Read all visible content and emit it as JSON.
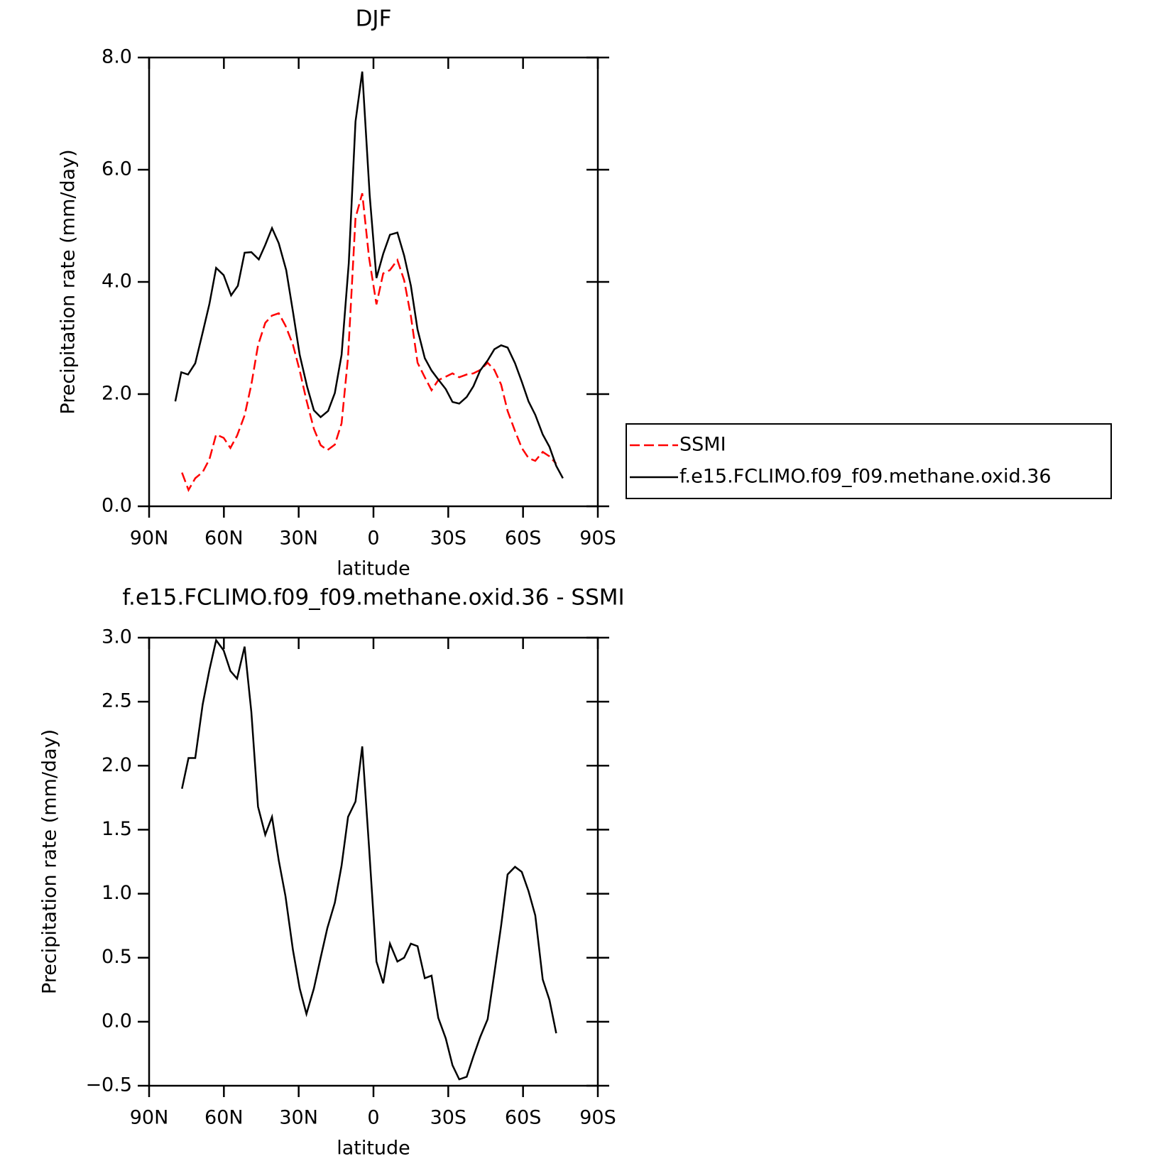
{
  "chart_data": [
    {
      "type": "line",
      "title": "DJF",
      "ylabel": "Precipitation rate (mm/day)",
      "xlabel": "latitude",
      "xlim": [
        90,
        -90
      ],
      "xticks": [
        {
          "value": 90,
          "label": "90N"
        },
        {
          "value": 60,
          "label": "60N"
        },
        {
          "value": 30,
          "label": "30N"
        },
        0,
        {
          "value": -30,
          "label": "30S"
        },
        {
          "value": -60,
          "label": "60S"
        },
        {
          "value": -90,
          "label": "90S"
        }
      ],
      "ylim": [
        0,
        8
      ],
      "yticks": [
        {
          "value": 0,
          "label": "0.0"
        },
        {
          "value": 2,
          "label": "2.0"
        },
        {
          "value": 4,
          "label": "4.0"
        },
        {
          "value": 6,
          "label": "6.0"
        },
        {
          "value": 8,
          "label": "8.0"
        }
      ],
      "legend": "outside-right",
      "series": [
        {
          "name": "SSMI",
          "color": "#ff0000",
          "dashed": true,
          "x": [
            76.8,
            74.2,
            71.5,
            68.5,
            65.8,
            63.1,
            60.1,
            57.4,
            54.7,
            51.7,
            49.0,
            46.3,
            43.4,
            40.7,
            38.0,
            35.3,
            32.3,
            29.6,
            26.9,
            23.9,
            21.2,
            18.5,
            15.5,
            12.8,
            10.2,
            7.2,
            4.5,
            1.8,
            -1.2,
            -3.9,
            -6.6,
            -9.6,
            -12.3,
            -15.0,
            -17.7,
            -20.6,
            -23.3,
            -26.0,
            -29.0,
            -31.7,
            -34.4,
            -37.4,
            -40.1,
            -42.8,
            -45.8,
            -48.5,
            -51.2,
            -53.8,
            -56.8,
            -59.5,
            -62.2,
            -64.9,
            -67.9,
            -70.6,
            -73.3
          ],
          "values": [
            0.6,
            0.29,
            0.5,
            0.61,
            0.84,
            1.28,
            1.22,
            1.04,
            1.26,
            1.62,
            2.17,
            2.87,
            3.27,
            3.4,
            3.44,
            3.22,
            2.88,
            2.42,
            1.89,
            1.38,
            1.09,
            1.0,
            1.1,
            1.48,
            2.66,
            5.14,
            5.58,
            4.44,
            3.6,
            4.15,
            4.21,
            4.39,
            4.03,
            3.39,
            2.56,
            2.3,
            2.07,
            2.25,
            2.31,
            2.37,
            2.3,
            2.35,
            2.37,
            2.43,
            2.56,
            2.43,
            2.17,
            1.7,
            1.34,
            1.04,
            0.86,
            0.81,
            0.97,
            0.89,
            0.76
          ]
        },
        {
          "name": "f.e15.FCLIMO.f09_f09.methane.oxid.36",
          "color": "#000000",
          "dashed": false,
          "x": [
            79.5,
            77.1,
            74.4,
            71.5,
            68.5,
            65.8,
            63.1,
            60.1,
            57.1,
            54.4,
            51.7,
            49.0,
            46.0,
            43.4,
            40.7,
            38.0,
            35.0,
            32.3,
            29.6,
            26.6,
            23.9,
            21.2,
            18.2,
            15.5,
            12.8,
            9.9,
            7.2,
            4.5,
            1.5,
            -1.2,
            -3.9,
            -6.6,
            -9.6,
            -12.3,
            -15.0,
            -17.7,
            -20.6,
            -23.3,
            -26.0,
            -29.0,
            -31.7,
            -34.4,
            -37.4,
            -40.1,
            -42.8,
            -45.8,
            -48.5,
            -51.2,
            -53.8,
            -56.8,
            -59.5,
            -62.2,
            -64.9,
            -67.9,
            -70.6,
            -73.3,
            -76.0
          ],
          "values": [
            1.87,
            2.39,
            2.35,
            2.55,
            3.1,
            3.61,
            4.25,
            4.12,
            3.76,
            3.93,
            4.52,
            4.53,
            4.4,
            4.66,
            4.96,
            4.69,
            4.21,
            3.47,
            2.7,
            2.13,
            1.71,
            1.59,
            1.7,
            2.02,
            2.7,
            4.33,
            6.86,
            7.75,
            5.54,
            4.07,
            4.5,
            4.84,
            4.88,
            4.47,
            3.93,
            3.15,
            2.64,
            2.42,
            2.26,
            2.09,
            1.86,
            1.83,
            1.95,
            2.14,
            2.42,
            2.6,
            2.8,
            2.87,
            2.83,
            2.55,
            2.22,
            1.87,
            1.63,
            1.28,
            1.06,
            0.72,
            0.5
          ]
        }
      ]
    },
    {
      "type": "line",
      "title": "f.e15.FCLIMO.f09_f09.methane.oxid.36 - SSMI",
      "ylabel": "Precipitation rate (mm/day)",
      "xlabel": "latitude",
      "xlim": [
        90,
        -90
      ],
      "xticks": [
        {
          "value": 90,
          "label": "90N"
        },
        {
          "value": 60,
          "label": "60N"
        },
        {
          "value": 30,
          "label": "30N"
        },
        0,
        {
          "value": -30,
          "label": "30S"
        },
        {
          "value": -60,
          "label": "60S"
        },
        {
          "value": -90,
          "label": "90S"
        }
      ],
      "ylim": [
        -0.5,
        3
      ],
      "yticks": [
        {
          "value": -0.5,
          "label": "−0.5"
        },
        {
          "value": 0,
          "label": "0.0"
        },
        0.5,
        {
          "value": 1,
          "label": "1.0"
        },
        1.5,
        {
          "value": 2,
          "label": "2.0"
        },
        2.5,
        {
          "value": 3,
          "label": "3.0"
        }
      ],
      "color": "#000000",
      "x": [
        76.8,
        74.2,
        71.5,
        68.5,
        65.8,
        63.1,
        60.1,
        57.4,
        54.7,
        51.7,
        49.0,
        46.3,
        43.4,
        40.7,
        38.0,
        35.3,
        32.3,
        29.6,
        26.9,
        23.9,
        21.2,
        18.5,
        15.5,
        12.8,
        10.2,
        7.2,
        4.5,
        1.8,
        -1.2,
        -3.9,
        -6.6,
        -9.6,
        -12.3,
        -15.0,
        -17.7,
        -20.6,
        -23.3,
        -26.0,
        -29.0,
        -31.7,
        -34.4,
        -37.4,
        -40.1,
        -42.8,
        -45.8,
        -48.5,
        -51.2,
        -53.8,
        -56.8,
        -59.5,
        -62.2,
        -64.9,
        -67.9,
        -70.6,
        -73.3
      ],
      "values": [
        1.82,
        2.06,
        2.06,
        2.48,
        2.75,
        2.98,
        2.9,
        2.74,
        2.68,
        2.93,
        2.42,
        1.68,
        1.46,
        1.6,
        1.26,
        0.98,
        0.56,
        0.26,
        0.06,
        0.26,
        0.5,
        0.73,
        0.93,
        1.22,
        1.6,
        1.72,
        2.15,
        1.37,
        0.47,
        0.3,
        0.61,
        0.47,
        0.5,
        0.61,
        0.59,
        0.34,
        0.36,
        0.03,
        -0.13,
        -0.34,
        -0.45,
        -0.43,
        -0.27,
        -0.12,
        0.02,
        0.38,
        0.75,
        1.15,
        1.21,
        1.17,
        1.02,
        0.83,
        0.33,
        0.17,
        -0.09
      ]
    }
  ]
}
